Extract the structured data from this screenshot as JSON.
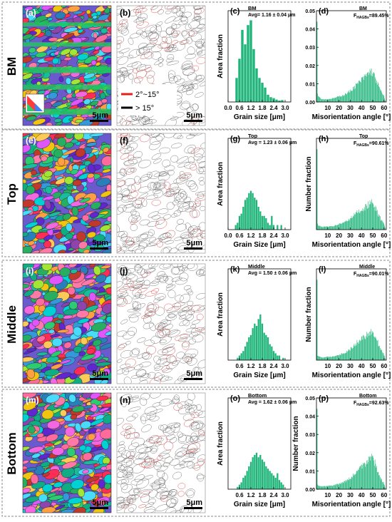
{
  "rows": [
    {
      "row_label": "BM",
      "ebsd_tag": "(a)",
      "gb_tag": "(b)",
      "gs_tag": "(c)",
      "mis_tag": "(d)",
      "ebsd_scale": "5μm",
      "gb_scale": "5μm",
      "gs_condition": "BM",
      "gs_avg": "Avg= 1.16 ± 0.04 μm",
      "gs_xlabel": "Grain size [μm]",
      "mis_condition": "BM",
      "mis_fhagb": "F",
      "mis_fhagb_sub": "HAGBs",
      "mis_fhagb_val": "=89.45%",
      "mis_ylabel": "",
      "mis_xlabel": "Misorientation angle [°]"
    },
    {
      "row_label": "Top",
      "ebsd_tag": "(e)",
      "gb_tag": "(f)",
      "gs_tag": "(g)",
      "mis_tag": "(h)",
      "ebsd_scale": "5μm",
      "gb_scale": "5μm",
      "gs_condition": "Top",
      "gs_avg": "Avg = 1.23 ± 0.06 μm",
      "gs_xlabel": "Grain Size [μm]",
      "mis_condition": "Top",
      "mis_fhagb": "F",
      "mis_fhagb_sub": "HAGBs",
      "mis_fhagb_val": "=90.61%",
      "mis_ylabel": "Number fraction",
      "mis_xlabel": "Misorientation angle [°]"
    },
    {
      "row_label": "Middle",
      "ebsd_tag": "(i)",
      "gb_tag": "(j)",
      "gs_tag": "(k)",
      "mis_tag": "(l)",
      "ebsd_scale": "5μm",
      "gb_scale": "5μm",
      "gs_condition": "Middle",
      "gs_avg": "Avg = 1.50 ± 0.06 μm",
      "gs_xlabel": "Grain Size [μm]",
      "mis_condition": "Middle",
      "mis_fhagb": "F",
      "mis_fhagb_sub": "HAGBs",
      "mis_fhagb_val": "=90.01%",
      "mis_ylabel": "Number fraction",
      "mis_xlabel": "Misorientation angle [°]"
    },
    {
      "row_label": "Bottom",
      "ebsd_tag": "(m)",
      "gb_tag": "(n)",
      "gs_tag": "(o)",
      "mis_tag": "(p)",
      "ebsd_scale": "5μm",
      "gb_scale": "5μm",
      "gs_condition": "Bottom",
      "gs_avg": "Avg = 1.62 ± 0.06 μm",
      "gs_xlabel": "Grain size [μm]",
      "mis_condition": "Bottom",
      "mis_fhagb": "F",
      "mis_fhagb_sub": "HAGBs",
      "mis_fhagb_val": "=92.63%",
      "mis_ylabel": "Number fraction",
      "mis_xlabel": "Misorientation angle [°]"
    }
  ],
  "gb_legend": [
    "2°~15°",
    "> 15°"
  ],
  "colors": {
    "bar": "#1fb57a",
    "low_angle": "#e02020",
    "high_angle": "#000000",
    "frame": "#888888"
  },
  "chart_data": [
    {
      "type": "bar",
      "panel": "(c)",
      "title": "BM",
      "xlabel": "Grain size [μm]",
      "ylabel": "Area fraction",
      "xlim": [
        0,
        3.3
      ],
      "xticks": [
        "0.0",
        "0.6",
        "1.2",
        "1.8",
        "2.4",
        "3.0"
      ],
      "bin_width": 0.15,
      "x": [
        0.45,
        0.6,
        0.75,
        0.9,
        1.05,
        1.2,
        1.35,
        1.5,
        1.65,
        1.8,
        1.95,
        2.1,
        2.25,
        2.4,
        2.55,
        2.7,
        2.85
      ],
      "values": [
        0.05,
        0.09,
        0.15,
        0.12,
        0.16,
        0.17,
        0.11,
        0.07,
        0.05,
        0.04,
        0.03,
        0.015,
        0.01,
        0.008,
        0.005,
        0.003,
        0.004
      ],
      "ylim": [
        0,
        0.19
      ]
    },
    {
      "type": "bar",
      "panel": "(d)",
      "title": "BM",
      "xlabel": "Misorientation angle [°]",
      "ylabel": "",
      "xlim": [
        0,
        62
      ],
      "xticks": [
        "10",
        "20",
        "30",
        "40",
        "50",
        "60"
      ],
      "yticks": [
        "0.00",
        "0.01",
        "0.02",
        "0.03",
        "0.04",
        "0.05"
      ],
      "ylim": [
        0,
        0.05
      ],
      "envelope": [
        [
          0,
          0.006
        ],
        [
          2,
          0.003
        ],
        [
          5,
          0.0015
        ],
        [
          10,
          0.0015
        ],
        [
          15,
          0.002
        ],
        [
          20,
          0.003
        ],
        [
          25,
          0.004
        ],
        [
          30,
          0.006
        ],
        [
          35,
          0.009
        ],
        [
          40,
          0.012
        ],
        [
          45,
          0.015
        ],
        [
          48,
          0.017
        ],
        [
          50,
          0.016
        ],
        [
          53,
          0.012
        ],
        [
          55,
          0.009
        ],
        [
          58,
          0.005
        ],
        [
          60,
          0.003
        ],
        [
          61,
          0.001
        ]
      ]
    },
    {
      "type": "bar",
      "panel": "(g)",
      "title": "Top",
      "xlabel": "Grain Size [μm]",
      "ylabel": "Area fraction",
      "xlim": [
        0,
        3.3
      ],
      "xticks": [
        "0.0",
        "0.6",
        "1.2",
        "1.8",
        "2.4",
        "3.0"
      ],
      "bin_width": 0.1,
      "x": [
        0.4,
        0.5,
        0.6,
        0.7,
        0.8,
        0.9,
        1.0,
        1.1,
        1.2,
        1.3,
        1.4,
        1.5,
        1.6,
        1.7,
        1.8,
        1.9,
        2.0,
        2.1,
        2.2,
        2.3,
        2.4,
        2.6,
        2.8
      ],
      "values": [
        0.01,
        0.015,
        0.03,
        0.035,
        0.05,
        0.065,
        0.07,
        0.08,
        0.085,
        0.08,
        0.07,
        0.065,
        0.05,
        0.04,
        0.03,
        0.03,
        0.025,
        0.015,
        0.01,
        0.03,
        0.01,
        0.01,
        0.01
      ],
      "ylim": [
        0,
        0.2
      ]
    },
    {
      "type": "bar",
      "panel": "(h)",
      "title": "Top",
      "xlabel": "Misorientation angle [°]",
      "ylabel": "Number fraction",
      "xlim": [
        0,
        62
      ],
      "xticks": [
        "10",
        "20",
        "30",
        "40",
        "50",
        "60"
      ],
      "ylim": [
        0,
        0.05
      ],
      "envelope": [
        [
          0,
          0.004
        ],
        [
          2,
          0.002
        ],
        [
          5,
          0.0015
        ],
        [
          10,
          0.0018
        ],
        [
          15,
          0.002
        ],
        [
          20,
          0.003
        ],
        [
          25,
          0.004
        ],
        [
          30,
          0.006
        ],
        [
          35,
          0.009
        ],
        [
          40,
          0.011
        ],
        [
          45,
          0.013
        ],
        [
          48,
          0.015
        ],
        [
          50,
          0.014
        ],
        [
          53,
          0.011
        ],
        [
          55,
          0.008
        ],
        [
          58,
          0.005
        ],
        [
          60,
          0.003
        ],
        [
          61,
          0.001
        ]
      ]
    },
    {
      "type": "bar",
      "panel": "(k)",
      "title": "Middle",
      "xlabel": "Grain Size [μm]",
      "ylabel": "Area fraction",
      "xlim": [
        0,
        3.3
      ],
      "xticks": [
        "0.6",
        "1.2",
        "1.8",
        "2.4",
        "3.0"
      ],
      "bin_width": 0.1,
      "x": [
        0.5,
        0.6,
        0.7,
        0.8,
        0.9,
        1.0,
        1.1,
        1.2,
        1.3,
        1.4,
        1.5,
        1.6,
        1.7,
        1.8,
        1.9,
        2.0,
        2.1,
        2.2,
        2.3,
        2.4,
        2.5,
        2.6,
        2.7,
        2.9
      ],
      "values": [
        0.005,
        0.01,
        0.015,
        0.02,
        0.03,
        0.04,
        0.05,
        0.055,
        0.07,
        0.08,
        0.075,
        0.09,
        0.1,
        0.08,
        0.06,
        0.055,
        0.05,
        0.035,
        0.03,
        0.02,
        0.015,
        0.01,
        0.01,
        0.005
      ],
      "ylim": [
        0,
        0.2
      ]
    },
    {
      "type": "bar",
      "panel": "(l)",
      "title": "Middle",
      "xlabel": "Misorientation angle [°]",
      "ylabel": "Number fraction",
      "xlim": [
        0,
        62
      ],
      "xticks": [
        "10",
        "20",
        "30",
        "40",
        "50",
        "60"
      ],
      "ylim": [
        0,
        0.05
      ],
      "envelope": [
        [
          0,
          0.003
        ],
        [
          2,
          0.002
        ],
        [
          5,
          0.0015
        ],
        [
          10,
          0.0018
        ],
        [
          15,
          0.002
        ],
        [
          20,
          0.003
        ],
        [
          25,
          0.004
        ],
        [
          30,
          0.006
        ],
        [
          35,
          0.009
        ],
        [
          40,
          0.012
        ],
        [
          45,
          0.014
        ],
        [
          48,
          0.016
        ],
        [
          50,
          0.015
        ],
        [
          53,
          0.012
        ],
        [
          55,
          0.009
        ],
        [
          58,
          0.005
        ],
        [
          60,
          0.003
        ],
        [
          61,
          0.001
        ]
      ]
    },
    {
      "type": "bar",
      "panel": "(o)",
      "title": "Bottom",
      "xlabel": "Grain size [μm]",
      "ylabel": "Area fraction",
      "xlim": [
        0,
        3.3
      ],
      "xticks": [
        "0.6",
        "1.2",
        "1.8",
        "2.4",
        "3.0"
      ],
      "bin_width": 0.1,
      "x": [
        0.5,
        0.6,
        0.7,
        0.8,
        0.9,
        1.0,
        1.1,
        1.2,
        1.3,
        1.4,
        1.5,
        1.6,
        1.7,
        1.8,
        1.9,
        2.0,
        2.1,
        2.2,
        2.3,
        2.4,
        2.5,
        2.6,
        2.7,
        2.8,
        2.9
      ],
      "values": [
        0.005,
        0.01,
        0.015,
        0.025,
        0.03,
        0.04,
        0.05,
        0.06,
        0.07,
        0.075,
        0.08,
        0.07,
        0.075,
        0.065,
        0.06,
        0.05,
        0.045,
        0.04,
        0.035,
        0.03,
        0.025,
        0.035,
        0.02,
        0.015,
        0.01
      ],
      "ylim": [
        0,
        0.2
      ]
    },
    {
      "type": "bar",
      "panel": "(p)",
      "title": "Bottom",
      "xlabel": "Misorientation angle [°]",
      "ylabel": "Number fraction",
      "xlim": [
        0,
        62
      ],
      "xticks": [
        "10",
        "20",
        "30",
        "40",
        "50",
        "60"
      ],
      "yticks": [
        "0.00",
        "0.01",
        "0.02",
        "0.03",
        "0.04",
        "0.05"
      ],
      "ylim": [
        0,
        0.05
      ],
      "envelope": [
        [
          0,
          0.003
        ],
        [
          2,
          0.002
        ],
        [
          5,
          0.0015
        ],
        [
          10,
          0.0018
        ],
        [
          15,
          0.002
        ],
        [
          20,
          0.003
        ],
        [
          25,
          0.004
        ],
        [
          30,
          0.006
        ],
        [
          35,
          0.009
        ],
        [
          40,
          0.012
        ],
        [
          45,
          0.015
        ],
        [
          48,
          0.018
        ],
        [
          50,
          0.017
        ],
        [
          53,
          0.013
        ],
        [
          55,
          0.009
        ],
        [
          58,
          0.005
        ],
        [
          60,
          0.003
        ],
        [
          61,
          0.001
        ]
      ]
    }
  ]
}
